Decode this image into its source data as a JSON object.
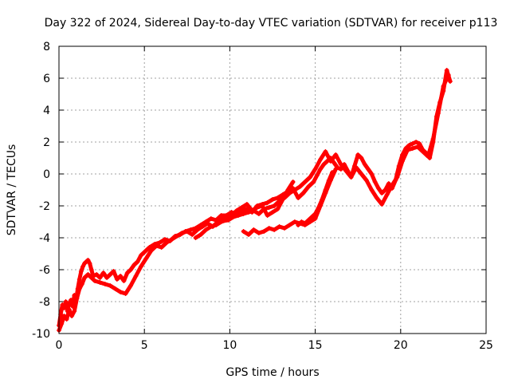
{
  "chart_data": {
    "type": "scatter",
    "title": "Day 322 of 2024, Sidereal Day-to-day VTEC variation (SDTVAR) for receiver p113",
    "xlabel": "GPS time / hours",
    "ylabel": "SDTVAR / TECUs",
    "xlim": [
      0,
      25
    ],
    "ylim": [
      -10,
      8
    ],
    "xticks": [
      0,
      5,
      10,
      15,
      20,
      25
    ],
    "yticks": [
      -10,
      -8,
      -6,
      -4,
      -2,
      0,
      2,
      4,
      6,
      8
    ],
    "grid": true,
    "legend": "none",
    "marker": "+",
    "color": "#ff0000",
    "series": [
      {
        "x": [
          0.0,
          0.1,
          0.2,
          0.3,
          0.4,
          0.5,
          0.6,
          0.7,
          0.8,
          0.9,
          1.0,
          1.1,
          1.2,
          1.3,
          1.4,
          1.5,
          1.6,
          1.7,
          1.8,
          1.9,
          2.0,
          2.2,
          2.4,
          2.6,
          2.8,
          3.0,
          3.2,
          3.4,
          3.6,
          3.8,
          4.0,
          4.2,
          4.4,
          4.6,
          4.8,
          5.0,
          5.3,
          5.6,
          5.9,
          6.2,
          6.5,
          6.8,
          7.1,
          7.4,
          7.7,
          8.0,
          8.3,
          8.6,
          8.9,
          9.2,
          9.5,
          9.8,
          10.1,
          10.4,
          10.7,
          11.0,
          11.3,
          11.6,
          11.9,
          12.2,
          12.5,
          12.8,
          13.1,
          13.4,
          13.7,
          14.0,
          14.3,
          14.6,
          14.9,
          15.1,
          15.3,
          15.5,
          15.7,
          15.9,
          16.1,
          16.3,
          16.5,
          16.7,
          16.9,
          17.1,
          17.3,
          17.5,
          17.7,
          17.9,
          18.1,
          18.3,
          18.5,
          18.7,
          18.9,
          19.1,
          19.3,
          19.5,
          19.7,
          19.9,
          20.1,
          20.3,
          20.5,
          20.7,
          20.9,
          21.1,
          21.3,
          21.5,
          21.7,
          21.9,
          22.1,
          22.3,
          22.5,
          22.7,
          22.9
        ],
        "y": [
          -9.5,
          -8.8,
          -8.2,
          -8.4,
          -8.0,
          -8.6,
          -8.1,
          -7.9,
          -8.3,
          -7.6,
          -7.9,
          -7.2,
          -6.6,
          -6.1,
          -5.8,
          -5.6,
          -5.5,
          -5.4,
          -5.6,
          -6.0,
          -6.4,
          -6.3,
          -6.5,
          -6.2,
          -6.5,
          -6.3,
          -6.1,
          -6.6,
          -6.4,
          -6.7,
          -6.2,
          -6.0,
          -5.7,
          -5.5,
          -5.1,
          -4.9,
          -4.6,
          -4.4,
          -4.3,
          -4.1,
          -4.2,
          -3.9,
          -3.8,
          -3.6,
          -3.5,
          -3.4,
          -3.2,
          -3.0,
          -2.8,
          -2.9,
          -2.6,
          -2.6,
          -2.4,
          -2.5,
          -2.3,
          -2.2,
          -2.4,
          -2.0,
          -1.9,
          -1.8,
          -1.6,
          -1.5,
          -1.3,
          -1.1,
          -0.9,
          -1.5,
          -1.2,
          -0.8,
          -0.5,
          -0.1,
          0.3,
          0.6,
          0.8,
          1.0,
          0.7,
          0.4,
          0.3,
          0.6,
          0.2,
          -0.2,
          0.5,
          1.2,
          1.0,
          0.6,
          0.3,
          0.0,
          -0.5,
          -0.9,
          -1.2,
          -1.0,
          -0.6,
          -0.9,
          -0.4,
          0.5,
          1.2,
          1.6,
          1.8,
          1.9,
          2.0,
          1.9,
          1.5,
          1.3,
          1.0,
          2.0,
          3.6,
          4.5,
          5.2,
          6.5,
          5.8
        ]
      },
      {
        "x": [
          0.0,
          0.15,
          0.3,
          0.45,
          0.6,
          0.75,
          0.9,
          1.05,
          1.2,
          1.35,
          1.5,
          1.7,
          1.9,
          2.1,
          2.4,
          2.7,
          3.0,
          3.3,
          3.6,
          3.9,
          4.2,
          4.5,
          4.8,
          5.1,
          5.4,
          5.7,
          6.0,
          6.3,
          6.6,
          6.9,
          7.2,
          7.5,
          7.8,
          8.1,
          8.4,
          8.7,
          9.0,
          9.3,
          9.6,
          9.9,
          10.2,
          10.5,
          10.8,
          11.1,
          11.4,
          11.7,
          12.0,
          12.3,
          12.6,
          12.9,
          13.2,
          13.5,
          13.8,
          14.1,
          14.4,
          14.7,
          15.0,
          15.3,
          15.6,
          15.9,
          16.2,
          16.5,
          16.8,
          17.1,
          17.4,
          17.7,
          18.0,
          18.3,
          18.6,
          18.9,
          19.2,
          19.5,
          19.8,
          20.1,
          20.4,
          20.7,
          21.0,
          21.3,
          21.6,
          21.9,
          22.2,
          22.5,
          22.8
        ],
        "y": [
          -9.8,
          -9.4,
          -8.9,
          -9.1,
          -8.5,
          -8.9,
          -8.6,
          -7.8,
          -7.2,
          -6.9,
          -6.5,
          -6.3,
          -6.5,
          -6.7,
          -6.8,
          -6.9,
          -7.0,
          -7.2,
          -7.4,
          -7.5,
          -7.0,
          -6.4,
          -5.8,
          -5.3,
          -4.8,
          -4.5,
          -4.6,
          -4.3,
          -4.1,
          -3.9,
          -3.7,
          -3.6,
          -3.8,
          -3.5,
          -3.3,
          -3.1,
          -3.3,
          -3.0,
          -2.8,
          -2.9,
          -2.7,
          -2.6,
          -2.5,
          -2.4,
          -2.3,
          -2.5,
          -2.2,
          -2.1,
          -2.0,
          -1.7,
          -1.5,
          -1.2,
          -1.0,
          -0.8,
          -0.5,
          -0.2,
          0.3,
          0.9,
          1.4,
          0.8,
          1.2,
          0.6,
          0.2,
          -0.2,
          0.4,
          0.0,
          -0.4,
          -1.0,
          -1.5,
          -1.9,
          -1.3,
          -0.7,
          -0.2,
          0.8,
          1.5,
          1.6,
          1.7,
          1.4,
          1.1,
          2.2,
          3.8,
          5.5,
          6.2
        ]
      },
      {
        "x": [
          10.8,
          11.1,
          11.4,
          11.7,
          12.0,
          12.3,
          12.6,
          12.9,
          13.2,
          13.5,
          13.8,
          14.1,
          14.4,
          14.7,
          15.0,
          15.3,
          15.6,
          15.9,
          16.2
        ],
        "y": [
          -3.6,
          -3.8,
          -3.5,
          -3.7,
          -3.6,
          -3.4,
          -3.5,
          -3.3,
          -3.4,
          -3.2,
          -3.0,
          -3.1,
          -3.2,
          -3.0,
          -2.8,
          -2.0,
          -1.2,
          -0.4,
          0.3
        ]
      },
      {
        "x": [
          14.0,
          14.2,
          14.4,
          14.6,
          14.8,
          15.0,
          15.2,
          15.4,
          15.6,
          15.8,
          16.0
        ],
        "y": [
          -3.2,
          -3.0,
          -3.1,
          -2.9,
          -2.7,
          -2.5,
          -2.1,
          -1.6,
          -1.0,
          -0.4,
          0.1
        ]
      },
      {
        "x": [
          8.0,
          8.3,
          8.6,
          8.9,
          9.2,
          9.5,
          9.8,
          10.1,
          10.4,
          10.7,
          11.0,
          11.3,
          11.6,
          11.9,
          12.2,
          12.5,
          12.8,
          13.1,
          13.4,
          13.7
        ],
        "y": [
          -4.0,
          -3.8,
          -3.5,
          -3.3,
          -3.2,
          -3.0,
          -2.9,
          -2.6,
          -2.3,
          -2.1,
          -1.9,
          -2.3,
          -2.1,
          -2.0,
          -2.6,
          -2.4,
          -2.2,
          -1.6,
          -1.0,
          -0.5
        ]
      }
    ]
  }
}
